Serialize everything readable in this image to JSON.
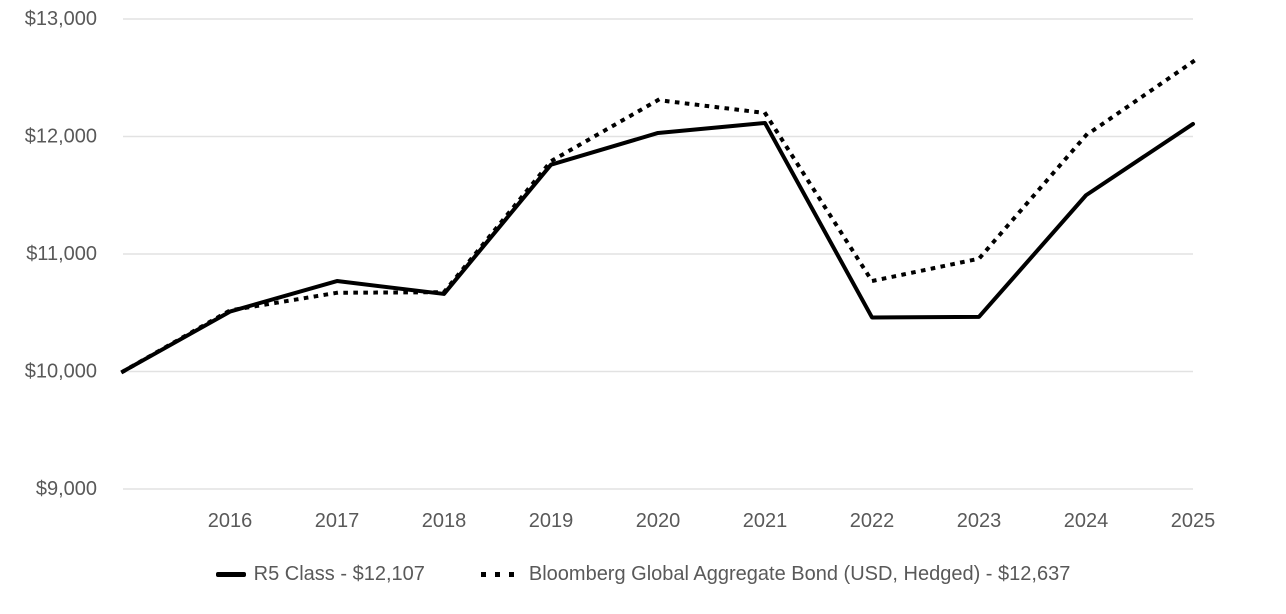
{
  "chart_data": {
    "type": "line",
    "title": "",
    "xlabel": "",
    "ylabel": "",
    "x": [
      2015,
      2016,
      2017,
      2018,
      2019,
      2020,
      2021,
      2022,
      2023,
      2024,
      2025
    ],
    "x_labels": [
      "2016",
      "2017",
      "2018",
      "2019",
      "2020",
      "2021",
      "2022",
      "2023",
      "2024",
      "2025"
    ],
    "x_range": [
      2015,
      2025
    ],
    "ylim": [
      9000,
      13000
    ],
    "y_ticks": [
      {
        "value": 13000,
        "label": "$13,000"
      },
      {
        "value": 12000,
        "label": "$12,000"
      },
      {
        "value": 11000,
        "label": "$11,000"
      },
      {
        "value": 10000,
        "label": "$10,000"
      },
      {
        "value": 9000,
        "label": "$9,000"
      }
    ],
    "grid": "horizontal",
    "legend_position": "bottom",
    "series": [
      {
        "name": "R5 Class",
        "style": "solid",
        "color": "#000000",
        "final_value": "$12,107",
        "values": [
          10000,
          10510,
          10770,
          10660,
          11760,
          12030,
          12115,
          10460,
          10465,
          11500,
          12107
        ]
      },
      {
        "name": "Bloomberg Global Aggregate Bond (USD, Hedged)",
        "style": "dotted",
        "color": "#000000",
        "final_value": "$12,637",
        "values": [
          10000,
          10520,
          10670,
          10675,
          11790,
          12310,
          12200,
          10770,
          10960,
          12010,
          12637
        ]
      }
    ]
  },
  "legend": {
    "items": [
      {
        "label": "R5 Class - $12,107",
        "marker": "solid-line"
      },
      {
        "label": "Bloomberg Global Aggregate Bond (USD, Hedged) - $12,637",
        "marker": "dotted-line"
      }
    ]
  },
  "colors": {
    "line": "#000000",
    "grid": "#e2e2e2",
    "axis_text": "#595959",
    "background": "#ffffff"
  }
}
